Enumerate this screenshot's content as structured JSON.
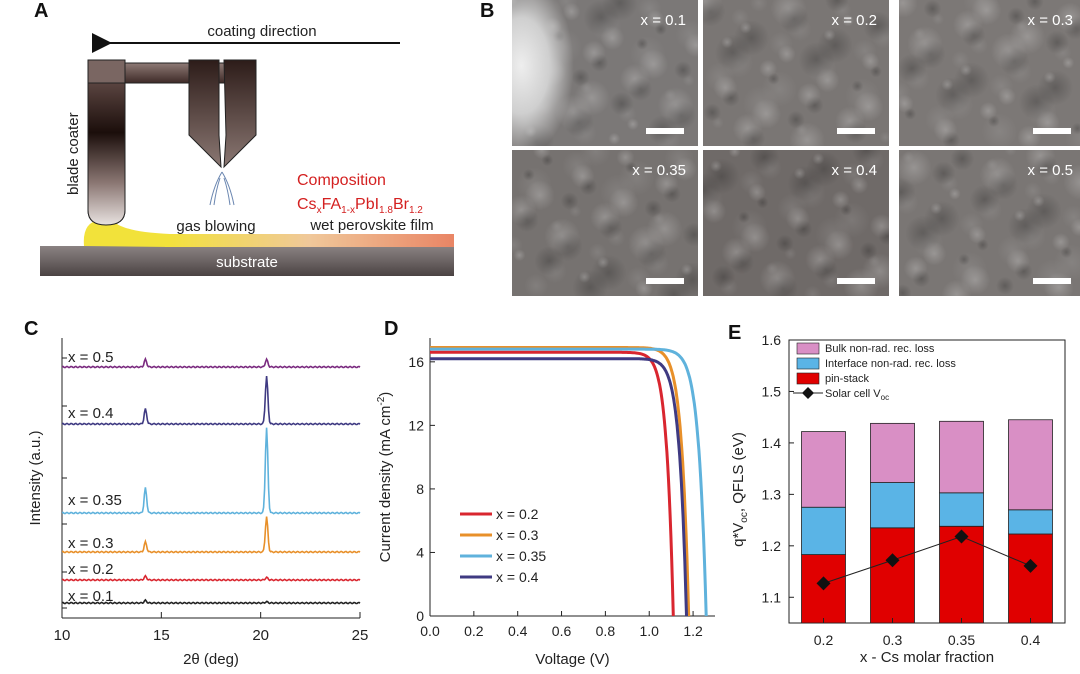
{
  "panels": {
    "a": "A",
    "b": "B",
    "c": "C",
    "d": "D",
    "e": "E"
  },
  "panelA": {
    "coating_direction": "coating direction",
    "blade_coater": "blade coater",
    "gas_blowing": "gas blowing",
    "composition_title": "Composition",
    "formula": {
      "cs": "Cs",
      "x": "x",
      "fa": "FA",
      "one_minus_x": "1-x",
      "pbi": "PbI",
      "i_sub": "1.8",
      "br": "Br",
      "br_sub": "1.2"
    },
    "wet_film": "wet perovskite film",
    "substrate": "substrate",
    "colors": {
      "composition": "#d42020",
      "yellow": "#f2e23a",
      "film": "#e98565"
    }
  },
  "panelB": {
    "images": [
      {
        "label": "x = 0.1"
      },
      {
        "label": "x = 0.2"
      },
      {
        "label": "x = 0.3"
      },
      {
        "label": "x = 0.35"
      },
      {
        "label": "x = 0.4"
      },
      {
        "label": "x = 0.5"
      }
    ]
  },
  "chart_data": [
    {
      "panel": "C",
      "type": "line",
      "title": "",
      "xlabel": "2θ (deg)",
      "ylabel": "Intensity (a.u.)",
      "xlim": [
        10,
        25
      ],
      "xticks": [
        10,
        15,
        20,
        25
      ],
      "series": [
        {
          "name": "x = 0.5",
          "color": "#7a2a7f",
          "peaks": [
            [
              14.2,
              0.3
            ],
            [
              20.3,
              0.3
            ]
          ]
        },
        {
          "name": "x = 0.4",
          "color": "#3f3a82",
          "peaks": [
            [
              14.2,
              0.6
            ],
            [
              20.3,
              1.9
            ]
          ]
        },
        {
          "name": "x = 0.35",
          "color": "#5fb2dc",
          "peaks": [
            [
              14.2,
              1.0
            ],
            [
              20.3,
              3.4
            ]
          ]
        },
        {
          "name": "x = 0.3",
          "color": "#e8902a",
          "peaks": [
            [
              14.2,
              0.4
            ],
            [
              20.3,
              1.4
            ]
          ]
        },
        {
          "name": "x = 0.2",
          "color": "#d9262f",
          "peaks": [
            [
              14.2,
              0.15
            ],
            [
              20.3,
              0.1
            ]
          ]
        },
        {
          "name": "x = 0.1",
          "color": "#222222",
          "peaks": [
            [
              14.2,
              0.1
            ],
            [
              20.3,
              0.05
            ]
          ]
        }
      ]
    },
    {
      "panel": "D",
      "type": "line",
      "xlabel": "Voltage (V)",
      "ylabel": "Current density (mA cm",
      "ylabel_sup": "-2",
      "ylabel_end": ")",
      "xlim": [
        0,
        1.3
      ],
      "ylim": [
        0,
        17.5
      ],
      "xticks": [
        "0.0",
        "0.2",
        "0.4",
        "0.6",
        "0.8",
        "1.0",
        "1.2"
      ],
      "yticks": [
        0,
        4,
        8,
        12,
        16
      ],
      "series": [
        {
          "name": "x = 0.2",
          "color": "#d9262f",
          "jsc": 16.6,
          "voc": 1.11
        },
        {
          "name": "x = 0.3",
          "color": "#e8902a",
          "jsc": 16.9,
          "voc": 1.18
        },
        {
          "name": "x = 0.35",
          "color": "#5fb2dc",
          "jsc": 16.8,
          "voc": 1.26
        },
        {
          "name": "x = 0.4",
          "color": "#3f3a82",
          "jsc": 16.2,
          "voc": 1.17
        }
      ]
    },
    {
      "panel": "E",
      "type": "bar",
      "xlabel": "x - Cs molar fraction",
      "ylabel": "q*V",
      "ylabel_sub": "oc",
      "ylabel_end": ", QFLS (eV)",
      "ylim": [
        1.05,
        1.6
      ],
      "yticks": [
        "1.1",
        "1.2",
        "1.3",
        "1.4",
        "1.5",
        "1.6"
      ],
      "categories": [
        "0.2",
        "0.3",
        "0.35",
        "0.4"
      ],
      "series": [
        {
          "name": "pin-stack",
          "color": "#e00000",
          "values": [
            1.183,
            1.235,
            1.238,
            1.223
          ]
        },
        {
          "name": "Interface non-rad. rec. loss",
          "color": "#5ab4e6",
          "values": [
            1.275,
            1.323,
            1.303,
            1.27
          ]
        },
        {
          "name": "Bulk non-rad. rec. loss",
          "color": "#d98fc5",
          "values": [
            1.422,
            1.438,
            1.442,
            1.445
          ]
        }
      ],
      "line": {
        "name": "Solar cell V",
        "name_sub": "oc",
        "values": [
          1.127,
          1.172,
          1.218,
          1.161
        ]
      },
      "legend": [
        "Bulk non-rad. rec. loss",
        "Interface non-rad. rec. loss",
        "pin-stack",
        "Solar cell V"
      ]
    }
  ]
}
